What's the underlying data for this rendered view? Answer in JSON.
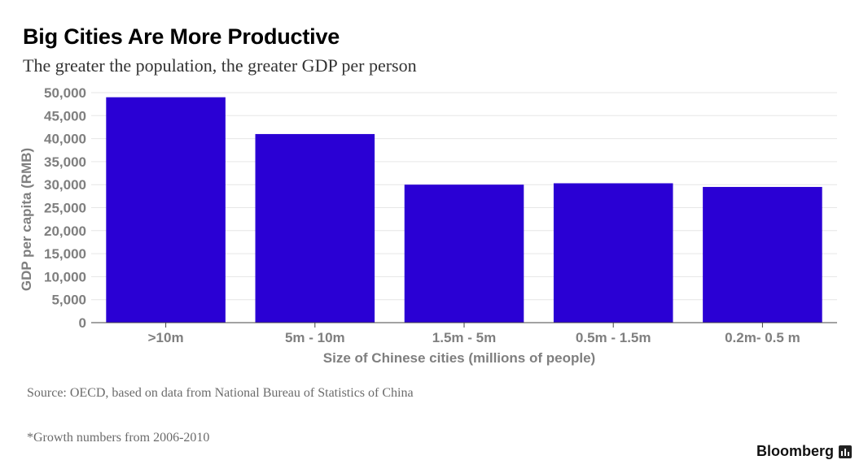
{
  "header": {
    "title": "Big Cities Are More Productive",
    "subtitle": "The greater the population, the greater GDP per person"
  },
  "footer": {
    "source": "Source: OECD, based on data from National Bureau of Statistics of China",
    "footnote": "*Growth numbers from 2006-2010",
    "brand": "Bloomberg",
    "brand_icon": "bloomberg-bars-icon"
  },
  "colors": {
    "bar": "#2a00d4",
    "axis_text": "#7f7f7f",
    "grid": "#e6e6e6"
  },
  "chart_data": {
    "type": "bar",
    "title": "Big Cities Are More Productive",
    "subtitle": "The greater the population, the greater GDP per person",
    "xlabel": "Size of Chinese cities (millions of people)",
    "ylabel": "GDP per capita (RMB)",
    "categories": [
      ">10m",
      "5m - 10m",
      "1.5m - 5m",
      "0.5m - 1.5m",
      "0.2m- 0.5 m"
    ],
    "values": [
      49000,
      41000,
      30000,
      30300,
      29500
    ],
    "ylim": [
      0,
      50000
    ],
    "yticks": [
      0,
      5000,
      10000,
      15000,
      20000,
      25000,
      30000,
      35000,
      40000,
      45000,
      50000
    ],
    "ytick_labels": [
      "0",
      "5,000",
      "10,000",
      "15,000",
      "20,000",
      "25,000",
      "30,000",
      "35,000",
      "40,000",
      "45,000",
      "50,000"
    ],
    "grid": true,
    "legend": "none"
  }
}
